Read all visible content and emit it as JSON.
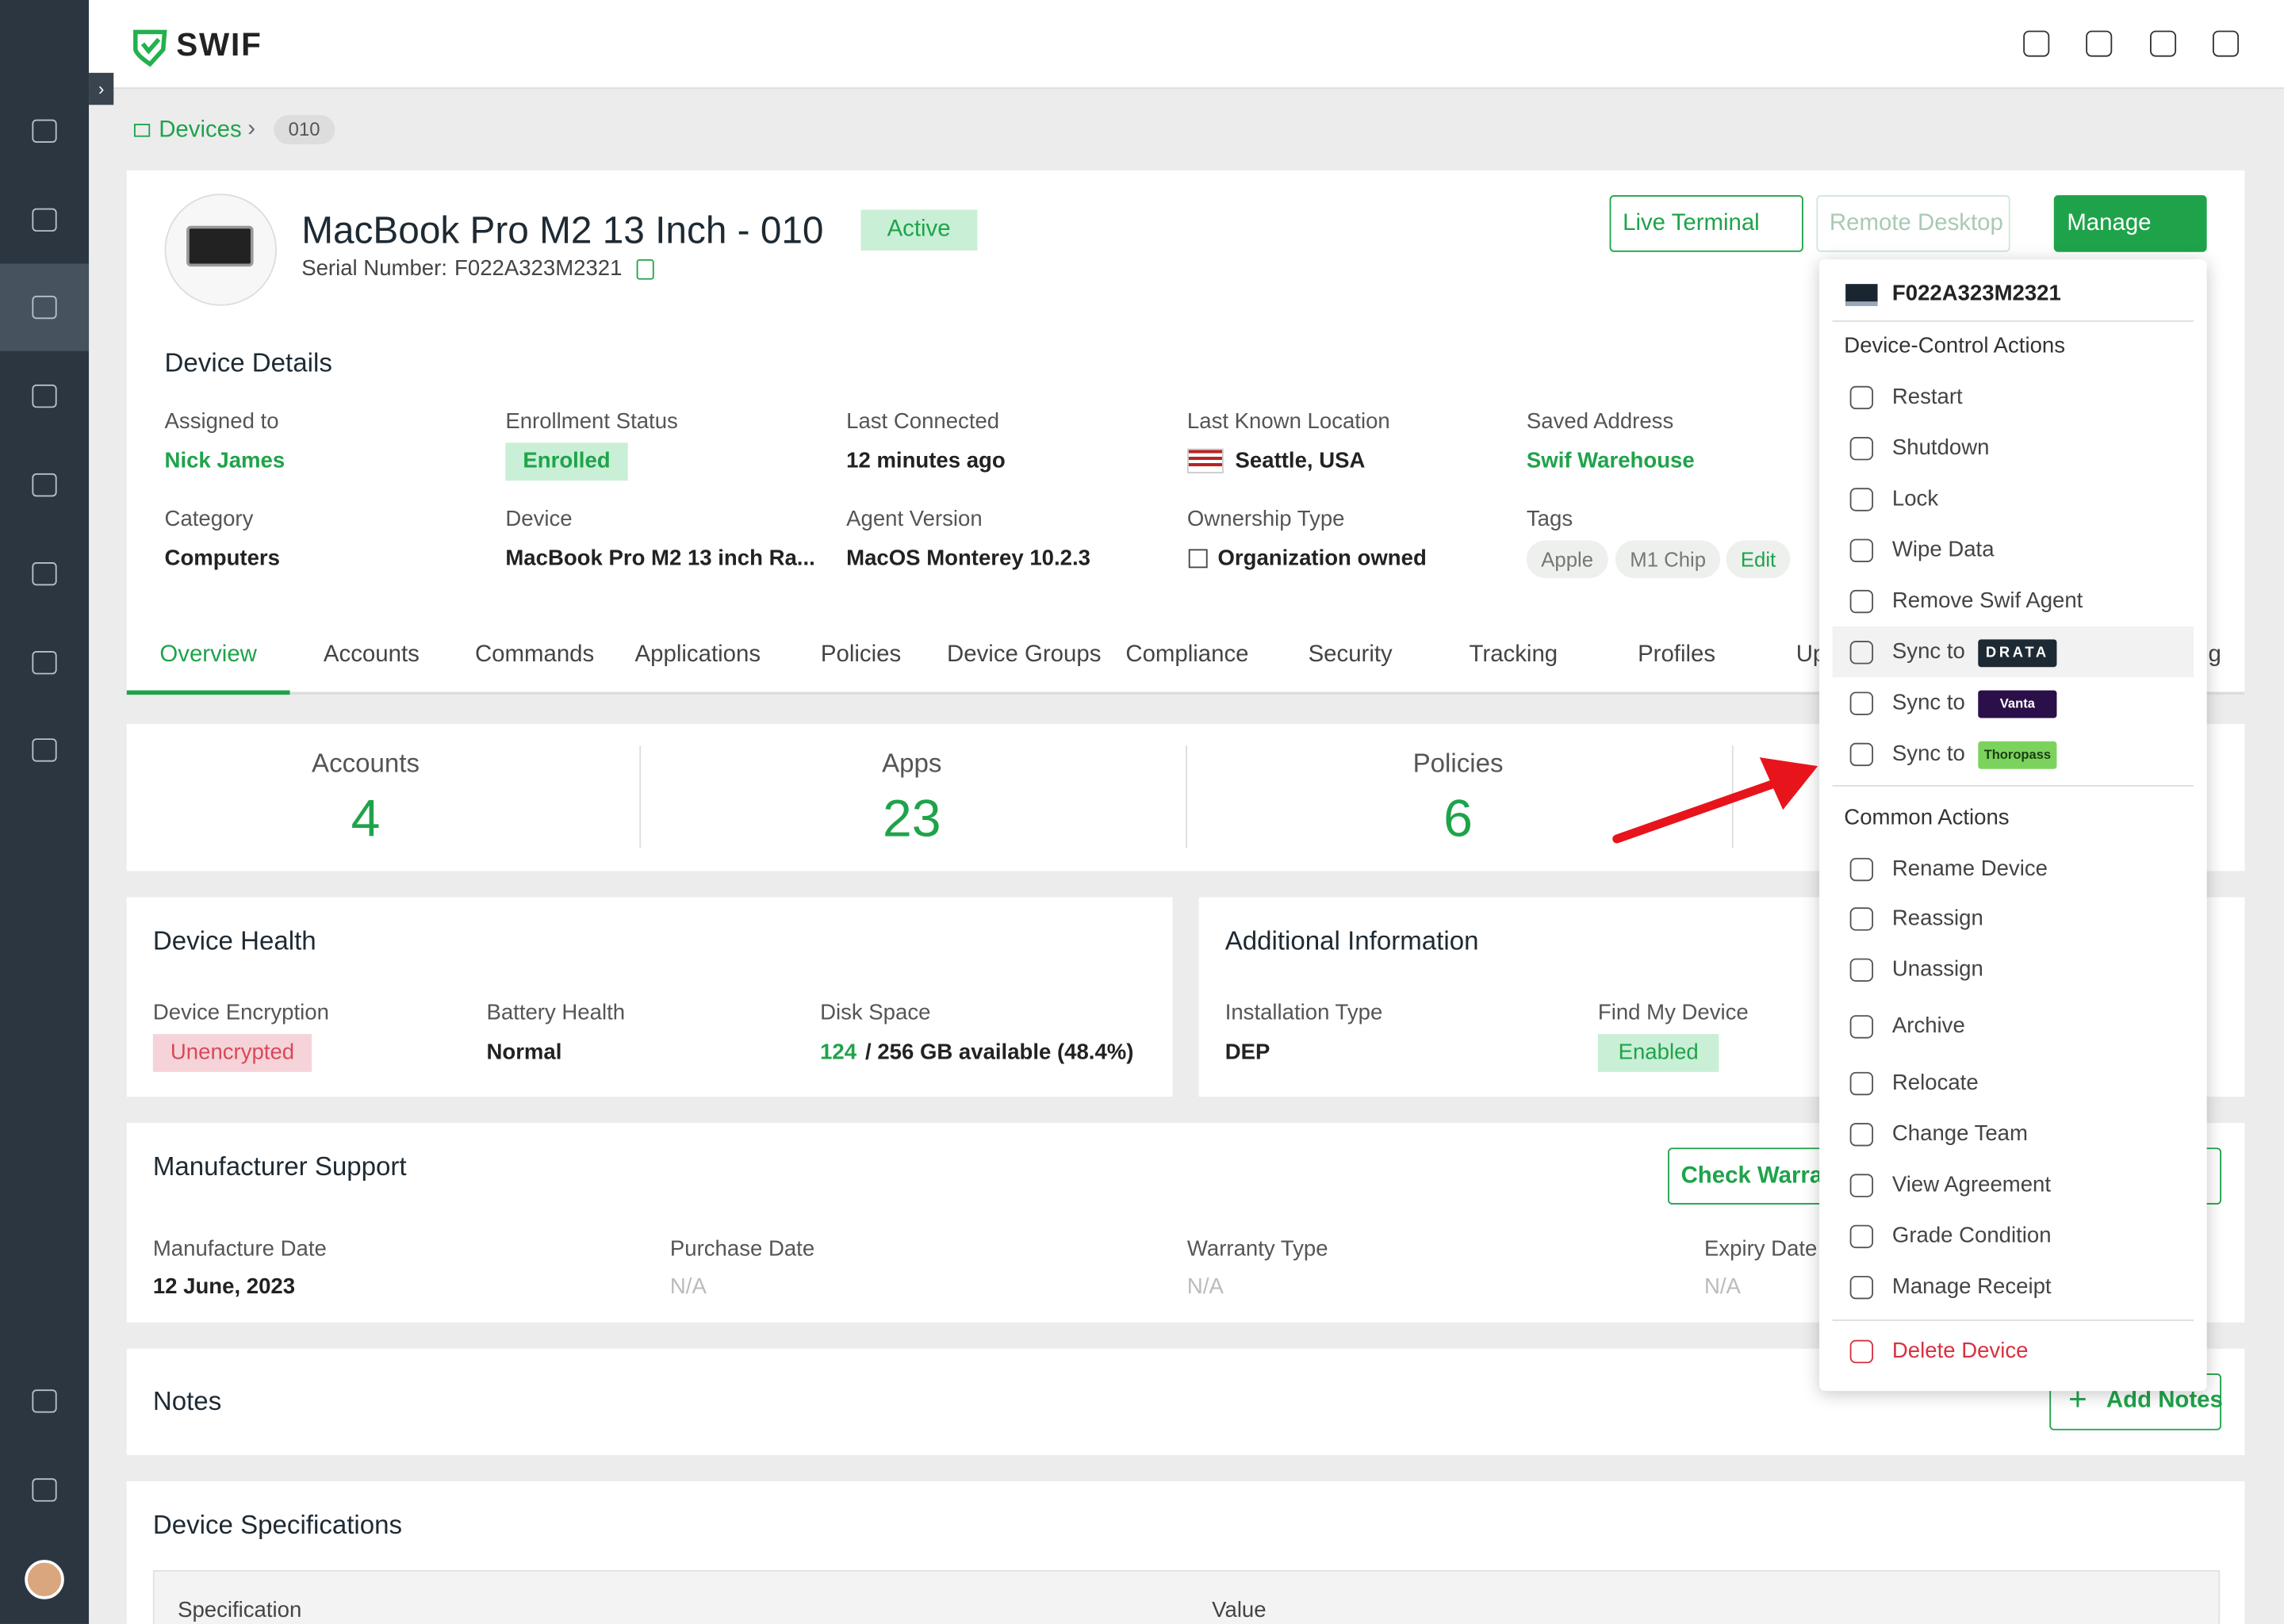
{
  "brand": "SWIF",
  "breadcrumb": {
    "root": "Devices",
    "current": "010"
  },
  "device": {
    "name": "MacBook Pro M2 13 Inch - 010",
    "status": "Active",
    "serial_label": "Serial Number:",
    "serial": "F022A323M2321"
  },
  "header_buttons": [
    "Live Terminal",
    "Remote Desktop",
    "Manage"
  ],
  "details": {
    "title": "Device Details",
    "fields": [
      {
        "label": "Assigned to",
        "value": "Nick James"
      },
      {
        "label": "Enrollment Status",
        "value": "Enrolled"
      },
      {
        "label": "Last Connected",
        "value": "12 minutes ago"
      },
      {
        "label": "Last Known Location",
        "value": "Seattle, USA"
      },
      {
        "label": "Saved Address",
        "value": "Swif Warehouse"
      },
      {
        "label": "Category",
        "value": "Computers"
      },
      {
        "label": "Device",
        "value": "MacBook Pro M2 13 inch Ra..."
      },
      {
        "label": "Agent Version",
        "value": "MacOS Monterey 10.2.3"
      },
      {
        "label": "Ownership Type",
        "value": "Organization owned"
      }
    ],
    "tags_label": "Tags",
    "tags": [
      "Apple",
      "M1 Chip"
    ],
    "tags_edit": "Edit"
  },
  "tabs": [
    "Overview",
    "Accounts",
    "Commands",
    "Applications",
    "Policies",
    "Device Groups",
    "Compliance",
    "Security",
    "Tracking",
    "Profiles",
    "Up",
    "g"
  ],
  "stats": [
    {
      "label": "Accounts",
      "value": "4"
    },
    {
      "label": "Apps",
      "value": "23"
    },
    {
      "label": "Policies",
      "value": "6"
    }
  ],
  "health": {
    "title": "Device Health",
    "fields": [
      {
        "label": "Device Encryption",
        "value": "Unencrypted"
      },
      {
        "label": "Battery Health",
        "value": "Normal"
      },
      {
        "label": "Disk Space",
        "value": "124",
        "value_rest": "/ 256 GB available (48.4%)"
      }
    ]
  },
  "additional": {
    "title": "Additional Information",
    "fields": [
      {
        "label": "Installation Type",
        "value": "DEP"
      },
      {
        "label": "Find My Device",
        "value": "Enabled"
      }
    ]
  },
  "manufacturer": {
    "title": "Manufacturer Support",
    "button": "Check Warran",
    "fields": [
      {
        "label": "Manufacture Date",
        "value": "12 June, 2023"
      },
      {
        "label": "Purchase Date",
        "value": "N/A"
      },
      {
        "label": "Warranty Type",
        "value": "N/A"
      },
      {
        "label": "Expiry Date",
        "value": "N/A"
      }
    ]
  },
  "notes": {
    "title": "Notes",
    "button": "Add Notes"
  },
  "specs": {
    "title": "Device Specifications",
    "columns": [
      "Specification",
      "Value"
    ]
  },
  "menu": {
    "serial": "F022A323M2321",
    "device_control": {
      "title": "Device-Control Actions",
      "items": [
        "Restart",
        "Shutdown",
        "Lock",
        "Wipe Data",
        "Remove Swif Agent"
      ],
      "sync": [
        {
          "label": "Sync to",
          "partner": "DRATA"
        },
        {
          "label": "Sync to",
          "partner": "Vanta"
        },
        {
          "label": "Sync to",
          "partner": "Thoropass"
        }
      ]
    },
    "common": {
      "title": "Common Actions",
      "items": [
        "Rename Device",
        "Reassign",
        "Unassign",
        "Archive",
        "Relocate",
        "Change Team",
        "View Agreement",
        "Grade Condition",
        "Manage Receipt"
      ]
    },
    "delete": "Delete Device"
  }
}
